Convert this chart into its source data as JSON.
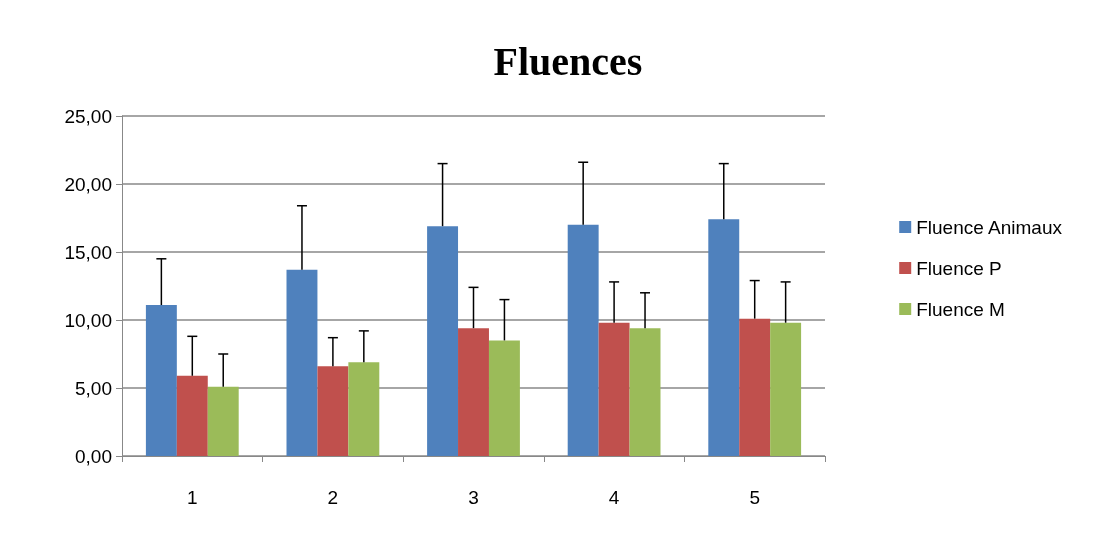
{
  "chart_data": {
    "type": "bar",
    "title": "Fluences",
    "categories": [
      "1",
      "2",
      "3",
      "4",
      "5"
    ],
    "series": [
      {
        "name": "Fluence Animaux",
        "color": "#4f81bd",
        "values": [
          11.1,
          13.7,
          16.9,
          17.0,
          17.4
        ],
        "errors": [
          [
            11.1,
            14.5
          ],
          [
            13.7,
            18.4
          ],
          [
            16.9,
            21.5
          ],
          [
            17.0,
            21.6
          ],
          [
            17.4,
            21.5
          ]
        ]
      },
      {
        "name": "Fluence P",
        "color": "#c0504d",
        "values": [
          5.9,
          6.6,
          9.4,
          9.8,
          10.1
        ],
        "errors": [
          [
            5.9,
            8.8
          ],
          [
            6.6,
            8.7
          ],
          [
            9.4,
            12.4
          ],
          [
            9.8,
            12.8
          ],
          [
            10.1,
            12.9
          ]
        ]
      },
      {
        "name": "Fluence M",
        "color": "#9bbb59",
        "values": [
          5.1,
          6.9,
          8.5,
          9.4,
          9.8
        ],
        "errors": [
          [
            5.1,
            7.5
          ],
          [
            6.9,
            9.2
          ],
          [
            8.5,
            11.5
          ],
          [
            9.4,
            12.0
          ],
          [
            9.8,
            12.8
          ]
        ]
      }
    ],
    "ylim": [
      0,
      25
    ],
    "yticks": [
      {
        "value": 0,
        "label": "0,00"
      },
      {
        "value": 5,
        "label": "5,00"
      },
      {
        "value": 10,
        "label": "10,00"
      },
      {
        "value": 15,
        "label": "15,00"
      },
      {
        "value": 20,
        "label": "20,00"
      },
      {
        "value": 25,
        "label": "25,00"
      }
    ],
    "grid": "y",
    "legend": "right"
  }
}
